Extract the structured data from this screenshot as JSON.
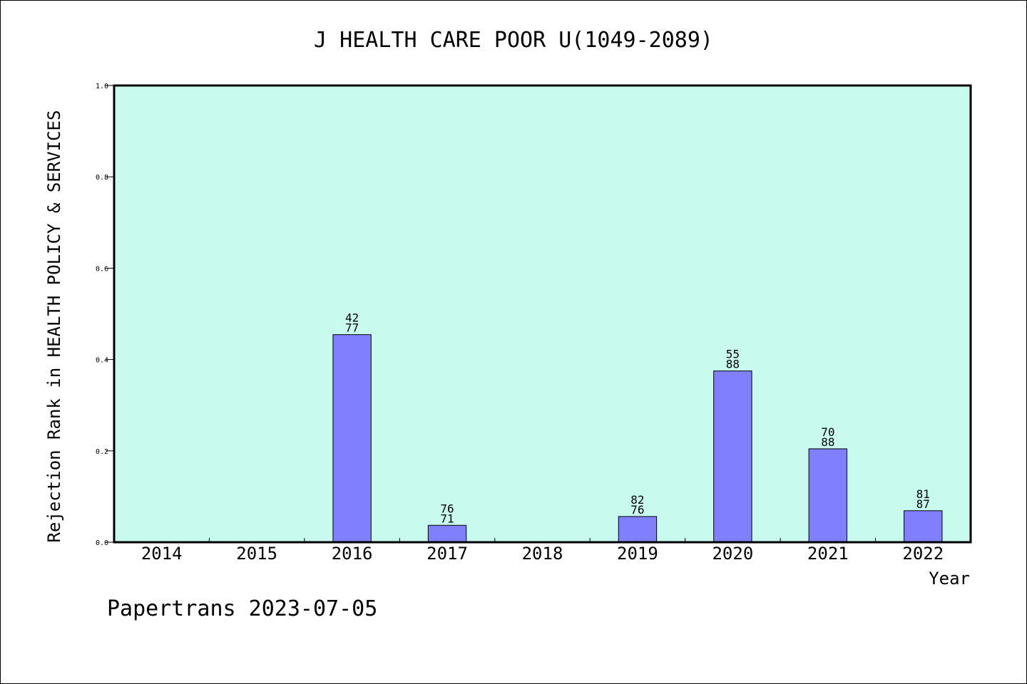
{
  "chart_data": {
    "type": "bar",
    "title": "J HEALTH CARE POOR U(1049-2089)",
    "xlabel": "Year",
    "ylabel": "Rejection Rank in HEALTH POLICY & SERVICES",
    "categories": [
      "2014",
      "2015",
      "2016",
      "2017",
      "2018",
      "2019",
      "2020",
      "2021",
      "2022"
    ],
    "values": [
      0,
      0,
      0.4545,
      0.037,
      0,
      0.0563,
      0.375,
      0.2045,
      0.069
    ],
    "labels": [
      null,
      null,
      [
        "42",
        "77"
      ],
      [
        "76",
        "71"
      ],
      null,
      [
        "82",
        "76"
      ],
      [
        "55",
        "88"
      ],
      [
        "70",
        "88"
      ],
      [
        "81",
        "87"
      ]
    ],
    "ylim": [
      0,
      1.0
    ],
    "yticks": [
      "0.0",
      "0.2",
      "0.4",
      "0.6",
      "0.8",
      "1.0"
    ],
    "grid": false,
    "colors": {
      "plot_background": "#c8fbee",
      "bar_fill": "#8080ff",
      "frame": "#000000"
    }
  },
  "footer": "Papertrans 2023-07-05"
}
